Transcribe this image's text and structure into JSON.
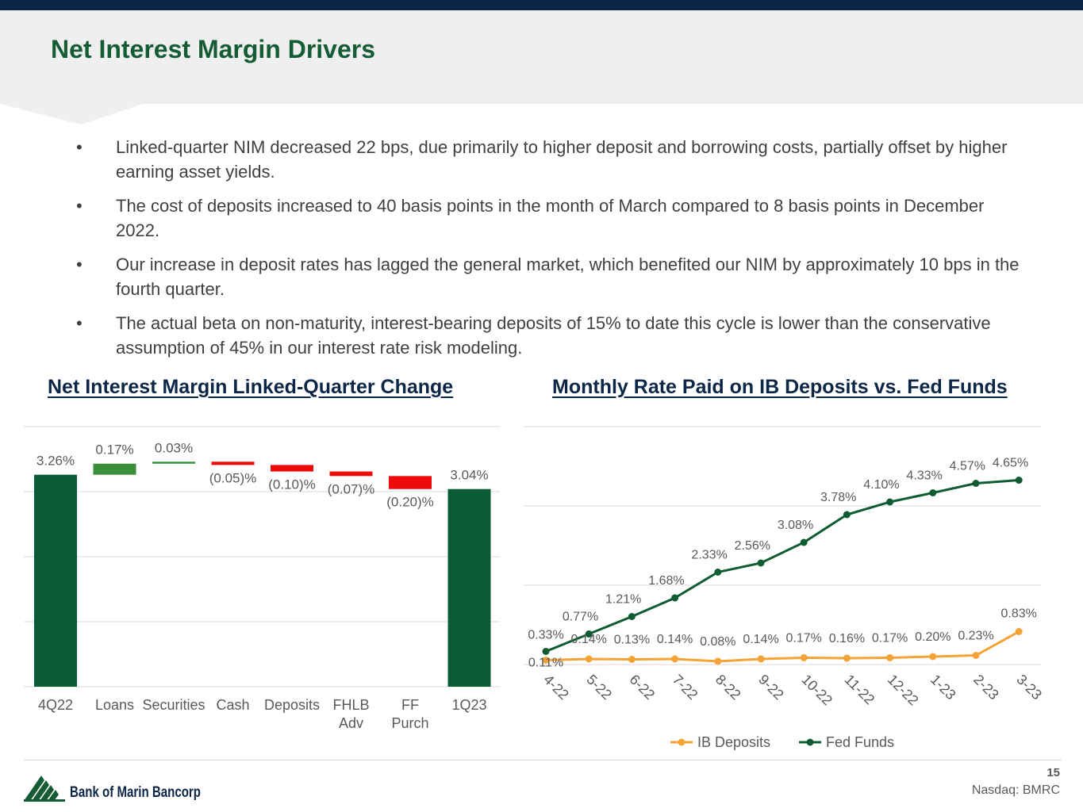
{
  "page": {
    "title": "Net Interest Margin Drivers",
    "page_number": "15",
    "ticker": "Nasdaq: BMRC",
    "company": "Bank of Marin Bancorp",
    "colors": {
      "title_green": "#155c34",
      "navy": "#0b2646",
      "bar_green": "#0b5c34",
      "bar_light_green": "#3a8f3a",
      "bar_red": "#ee0a0a",
      "ib_orange": "#f4a334",
      "fed_green": "#0f5c33"
    }
  },
  "bullets": [
    {
      "symbol": "•",
      "text": "Linked-quarter NIM decreased 22 bps, due primarily to higher deposit and borrowing costs, partially offset by higher earning asset yields."
    },
    {
      "symbol": "•",
      "text": "The cost of deposits increased to 40 basis points in the month of March compared to 8 basis points in December 2022."
    },
    {
      "symbol": "•",
      "text": "Our increase in deposit rates has lagged the general market, which benefited our NIM by approximately 10 bps in the fourth quarter."
    },
    {
      "symbol": "•",
      "text": "The actual beta on non-maturity, interest-bearing deposits of 15% to date this cycle is lower than the conservative assumption of 45% in our interest rate risk modeling."
    }
  ],
  "chart_data": [
    {
      "type": "bar",
      "subtype": "waterfall",
      "title": "Net Interest Margin Linked-Quarter Change",
      "categories": [
        "4Q22",
        "Loans",
        "Securities",
        "Cash",
        "Deposits",
        "FHLB Adv",
        "FF Purch",
        "1Q23"
      ],
      "values": [
        3.26,
        0.17,
        0.03,
        -0.05,
        -0.1,
        -0.07,
        -0.2,
        3.04
      ],
      "labels": [
        "3.26%",
        "0.17%",
        "0.03%",
        "(0.05)%",
        "(0.10)%",
        "(0.07)%",
        "(0.20)%",
        "3.04%"
      ],
      "kinds": [
        "total",
        "delta",
        "delta",
        "delta",
        "delta",
        "delta",
        "delta",
        "total"
      ],
      "ylim": [
        0,
        4
      ],
      "grid": true,
      "xlabel": "",
      "ylabel": ""
    },
    {
      "type": "line",
      "title": "Monthly Rate Paid on IB Deposits vs. Fed Funds",
      "categories": [
        "4-22",
        "5-22",
        "6-22",
        "7-22",
        "8-22",
        "9-22",
        "10-22",
        "11-22",
        "12-22",
        "1-23",
        "2-23",
        "3-23"
      ],
      "series": [
        {
          "name": "IB Deposits",
          "values": [
            0.11,
            0.14,
            0.13,
            0.14,
            0.08,
            0.14,
            0.17,
            0.16,
            0.17,
            0.2,
            0.23,
            0.83
          ],
          "labels": [
            "0.11%",
            "0.14%",
            "0.13%",
            "0.14%",
            "0.08%",
            "0.14%",
            "0.17%",
            "0.16%",
            "0.17%",
            "0.20%",
            "0.23%",
            "0.83%"
          ]
        },
        {
          "name": "Fed Funds",
          "values": [
            0.33,
            0.77,
            1.21,
            1.68,
            2.33,
            2.56,
            3.08,
            3.78,
            4.1,
            4.33,
            4.57,
            4.65
          ],
          "labels": [
            "0.33%",
            "0.77%",
            "1.21%",
            "1.68%",
            "2.33%",
            "2.56%",
            "3.08%",
            "3.78%",
            "4.10%",
            "4.33%",
            "4.57%",
            "4.65%"
          ]
        }
      ],
      "ylim": [
        0,
        6
      ],
      "grid": true,
      "legend": "bottom",
      "xlabel": "",
      "ylabel": ""
    }
  ]
}
